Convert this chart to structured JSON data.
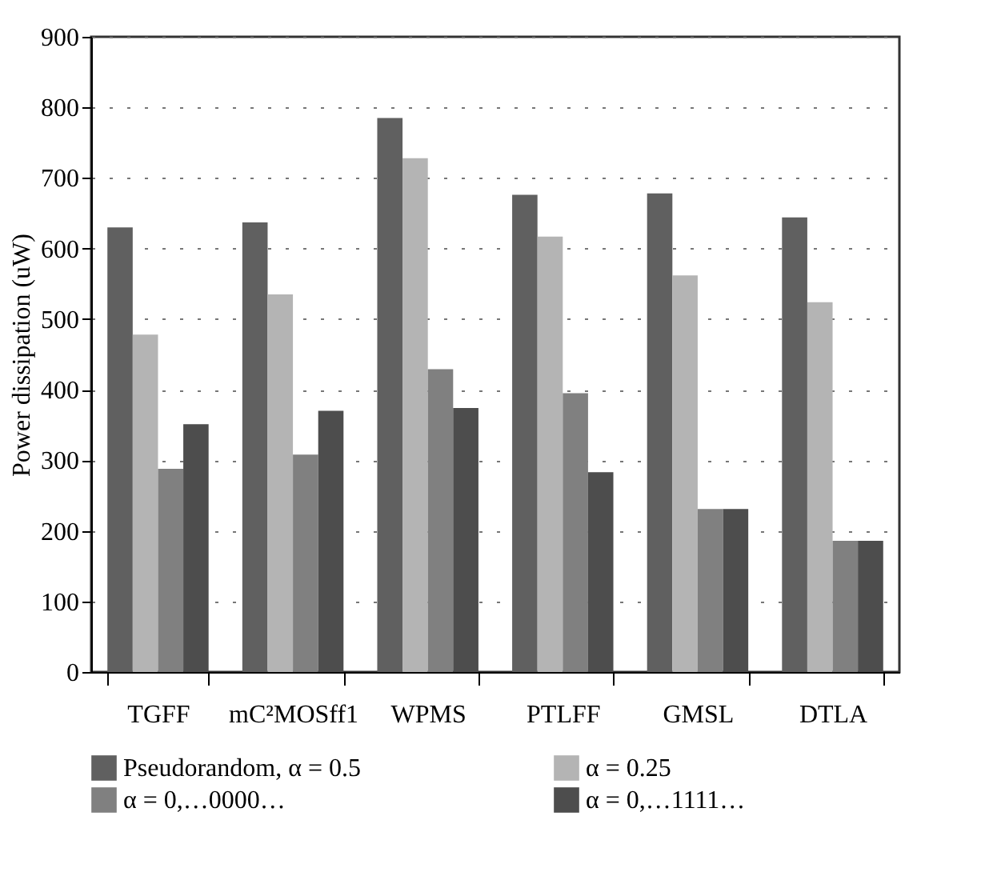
{
  "chart_data": {
    "type": "bar",
    "ylabel": "Power dissipation (uW)",
    "categories": [
      "TGFF",
      "mC²MOSff1",
      "WPMS",
      "PTLFF",
      "GMSL",
      "DTLA"
    ],
    "series": [
      {
        "name": "Pseudorandom, α = 0.5",
        "color": "#606060",
        "values": [
          630,
          637,
          785,
          676,
          678,
          644
        ]
      },
      {
        "name": "α = 0.25",
        "color": "#b4b4b4",
        "values": [
          478,
          535,
          728,
          617,
          562,
          524
        ]
      },
      {
        "name": "α = 0,…0000…",
        "color": "#808080",
        "values": [
          288,
          308,
          429,
          395,
          231,
          186
        ]
      },
      {
        "name": "α = 0,…1111…",
        "color": "#4d4d4d",
        "values": [
          351,
          370,
          374,
          283,
          231,
          186
        ]
      }
    ],
    "ylim": [
      0,
      900
    ],
    "yticks": [
      0,
      100,
      200,
      300,
      400,
      500,
      600,
      700,
      800,
      900
    ],
    "grid": "y",
    "legend": "bottom"
  }
}
